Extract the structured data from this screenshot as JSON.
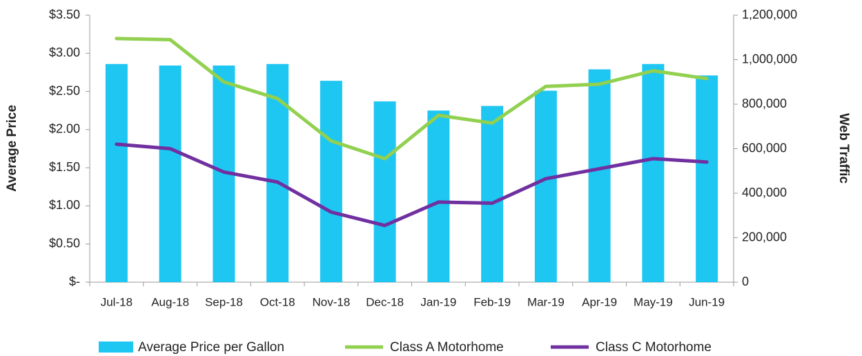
{
  "chart_data": {
    "type": "combo",
    "categories": [
      "Jul-18",
      "Aug-18",
      "Sep-18",
      "Oct-18",
      "Nov-18",
      "Dec-18",
      "Jan-19",
      "Feb-19",
      "Mar-19",
      "Apr-19",
      "May-19",
      "Jun-19"
    ],
    "series": [
      {
        "name": "Average Price per Gallon",
        "type": "bar",
        "color": "#1ec6f2",
        "values": [
          2.86,
          2.84,
          2.84,
          2.86,
          2.64,
          2.37,
          2.25,
          2.31,
          2.51,
          2.79,
          2.86,
          2.71
        ]
      },
      {
        "name": "Class A Motorhome",
        "type": "line",
        "axis": "y2",
        "color": "#92d050",
        "values": [
          1095000,
          1090000,
          900000,
          825000,
          635000,
          555000,
          750000,
          715000,
          880000,
          890000,
          950000,
          915000
        ]
      },
      {
        "name": "Class C Motorhome",
        "type": "line",
        "axis": "y2",
        "color": "#7030a0",
        "values": [
          620000,
          600000,
          495000,
          450000,
          315000,
          255000,
          360000,
          355000,
          465000,
          510000,
          555000,
          540000
        ]
      }
    ],
    "ylabel": "Average Price",
    "y2label": "Web Traffic",
    "ylim": [
      0,
      3.5
    ],
    "yticks": [
      {
        "value": 0,
        "label": "$-"
      },
      {
        "value": 0.5,
        "label": "$0.50"
      },
      {
        "value": 1,
        "label": "$1.00"
      },
      {
        "value": 1.5,
        "label": "$1.50"
      },
      {
        "value": 2,
        "label": "$2.00"
      },
      {
        "value": 2.5,
        "label": "$2.50"
      },
      {
        "value": 3,
        "label": "$3.00"
      },
      {
        "value": 3.5,
        "label": "$3.50"
      }
    ],
    "y2lim": [
      0,
      1200000
    ],
    "y2ticks": [
      0,
      {
        "value": 200000,
        "label": "200,000"
      },
      {
        "value": 400000,
        "label": "400,000"
      },
      {
        "value": 600000,
        "label": "600,000"
      },
      {
        "value": 800000,
        "label": "800,000"
      },
      {
        "value": 1000000,
        "label": "1,000,000"
      },
      {
        "value": 1200000,
        "label": "1,200,000"
      }
    ],
    "grid": false,
    "legend": "bottom"
  }
}
